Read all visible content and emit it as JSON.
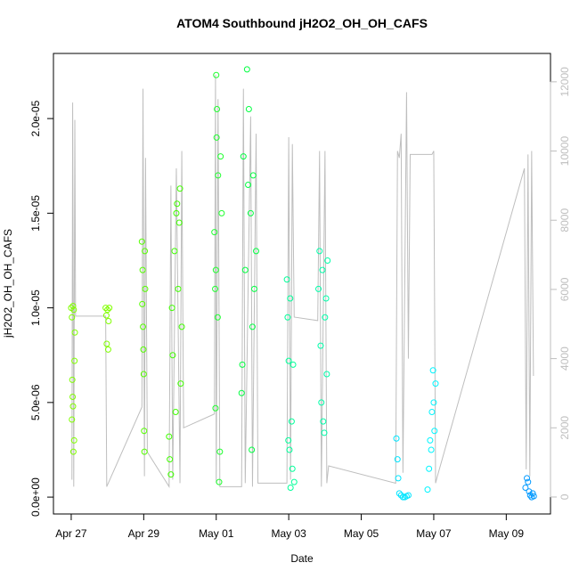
{
  "chart_data": {
    "type": "scatter",
    "title": "ATOM4 Southbound jH2O2_OH_OH_CAFS",
    "xlabel": "Date",
    "ylabel": "jH2O2_OH_OH_CAFS",
    "xlim": [
      -0.49,
      13.22
    ],
    "ylim": [
      -8.9e-07,
      2.344e-05
    ],
    "y2lim": [
      -490,
      12820
    ],
    "xticks": [
      {
        "value": 0,
        "label": "Apr 27"
      },
      {
        "value": 2,
        "label": "Apr 29"
      },
      {
        "value": 4,
        "label": "May 01"
      },
      {
        "value": 6,
        "label": "May 03"
      },
      {
        "value": 8,
        "label": "May 05"
      },
      {
        "value": 10,
        "label": "May 07"
      },
      {
        "value": 12,
        "label": "May 09"
      }
    ],
    "yticks": [
      {
        "value": 0,
        "label": "0.0e+00"
      },
      {
        "value": 5e-06,
        "label": "5.0e-06"
      },
      {
        "value": 1e-05,
        "label": "1.0e-05"
      },
      {
        "value": 1.5e-05,
        "label": "1.5e-05"
      },
      {
        "value": 2e-05,
        "label": "2.0e-05"
      }
    ],
    "y2ticks": [
      0,
      2000,
      4000,
      6000,
      8000,
      10000,
      12000
    ],
    "y2color": "#bebebe",
    "series": [
      {
        "color": "#80ff00",
        "x": [
          0.0,
          0.02,
          0.03,
          0.05,
          0.06,
          0.08,
          0.1,
          0.04,
          0.07,
          0.02,
          0.09,
          0.05
        ],
        "values": [
          1e-05,
          9.5e-06,
          6.2e-06,
          4.8e-06,
          2.4e-06,
          3e-06,
          8.7e-06,
          5.3e-06,
          9.9e-06,
          4.1e-06,
          7.2e-06,
          1.01e-05
        ]
      },
      {
        "color": "#80ff00",
        "x": [
          0.95,
          0.97,
          0.98,
          1.0,
          1.02,
          1.03,
          1.05
        ],
        "values": [
          1e-05,
          9.6e-06,
          8.1e-06,
          9.9e-06,
          7.8e-06,
          9.3e-06,
          1e-05
        ]
      },
      {
        "color": "#55ff00",
        "x": [
          1.95,
          1.97,
          1.98,
          2.0,
          2.01,
          2.02,
          2.04,
          1.99,
          2.03,
          1.96
        ],
        "values": [
          1.35e-05,
          1.2e-05,
          9e-06,
          6.5e-06,
          3.5e-06,
          2.4e-06,
          1.1e-05,
          7.8e-06,
          1.3e-05,
          1.02e-05
        ]
      },
      {
        "color": "#40ff00",
        "x": [
          2.7,
          2.75,
          2.8,
          2.85,
          2.9,
          2.95,
          3.0,
          3.05,
          2.72,
          2.88,
          2.98,
          3.02,
          2.78,
          2.92
        ],
        "values": [
          3.2e-06,
          1.2e-06,
          7.5e-06,
          1.3e-05,
          1.5e-05,
          1.1e-05,
          1.63e-05,
          9e-06,
          2e-06,
          4.5e-06,
          1.45e-05,
          6e-06,
          1e-05,
          1.55e-05
        ]
      },
      {
        "color": "#20ff30",
        "x": [
          3.95,
          3.97,
          3.98,
          4.0,
          4.02,
          4.05,
          4.08,
          4.1,
          4.12,
          4.15,
          3.99,
          4.04,
          4.01
        ],
        "values": [
          1.4e-05,
          1.1e-05,
          4.7e-06,
          2.23e-05,
          2.05e-05,
          1.7e-05,
          8e-07,
          2.4e-06,
          1.8e-05,
          1.5e-05,
          1.2e-05,
          9.5e-06,
          1.9e-05
        ]
      },
      {
        "color": "#00ff40",
        "x": [
          4.7,
          4.75,
          4.8,
          4.85,
          4.9,
          4.95,
          5.0,
          5.05,
          5.1,
          4.72,
          4.88,
          5.02,
          4.98
        ],
        "values": [
          5.5e-06,
          1.8e-05,
          1.2e-05,
          2.26e-05,
          2.05e-05,
          1.5e-05,
          9e-06,
          1.1e-05,
          1.3e-05,
          7e-06,
          1.65e-05,
          1.7e-05,
          2.5e-06
        ]
      },
      {
        "color": "#00ff99",
        "x": [
          5.95,
          5.97,
          6.0,
          6.02,
          6.05,
          6.08,
          6.1,
          6.12,
          6.15,
          6.04,
          5.99
        ],
        "values": [
          1.15e-05,
          9.5e-06,
          7.2e-06,
          2.5e-06,
          5e-07,
          4e-06,
          1.5e-06,
          7e-06,
          8e-07,
          1.05e-05,
          3e-06
        ]
      },
      {
        "color": "#00ffaa",
        "x": [
          6.82,
          6.85,
          6.88,
          6.9,
          6.93,
          6.95,
          6.98,
          7.0,
          7.03,
          7.05,
          7.07
        ],
        "values": [
          1.1e-05,
          1.3e-05,
          8e-06,
          5e-06,
          1.2e-05,
          4e-06,
          3.4e-06,
          9.5e-06,
          1.05e-05,
          6.5e-06,
          1.25e-05
        ]
      },
      {
        "color": "#00e5ff",
        "x": [
          8.97,
          9.0,
          9.02,
          9.05,
          9.1,
          9.15,
          9.2,
          9.25,
          9.3
        ],
        "values": [
          3.1e-06,
          2e-06,
          1e-06,
          2e-07,
          1e-07,
          0,
          0,
          5e-08,
          1e-07
        ]
      },
      {
        "color": "#00f5ff",
        "x": [
          9.83,
          9.87,
          9.9,
          9.93,
          9.95,
          9.98,
          10.0,
          10.02,
          10.05
        ],
        "values": [
          4e-07,
          1.5e-06,
          3e-06,
          2.5e-06,
          4.5e-06,
          6.7e-06,
          5e-06,
          3.5e-06,
          6e-06
        ]
      },
      {
        "color": "#0099ff",
        "x": [
          12.53,
          12.57,
          12.6,
          12.63,
          12.66,
          12.7,
          12.73,
          12.76
        ],
        "values": [
          5e-07,
          1e-06,
          8e-07,
          3e-07,
          1e-07,
          0,
          2e-07,
          5e-08
        ]
      },
      {
        "type": "line",
        "axis": "y2",
        "color": "#bebebe",
        "x": [
          0.02,
          0.04,
          0.07,
          0.1,
          0.12,
          0.95,
          0.98,
          1.95,
          1.98,
          2.02,
          2.05,
          2.1,
          2.7,
          2.75,
          2.8,
          2.9,
          3.0,
          3.05,
          3.1,
          3.95,
          3.98,
          4.0,
          4.05,
          4.1,
          4.7,
          4.75,
          4.8,
          4.95,
          5.0,
          5.1,
          5.15,
          5.95,
          6.0,
          6.05,
          6.1,
          6.15,
          6.8,
          6.85,
          6.9,
          7.0,
          7.05,
          7.1,
          8.95,
          9.0,
          9.05,
          9.1,
          9.15,
          9.25,
          9.3,
          9.35,
          9.95,
          10.0,
          10.05,
          10.1,
          12.5,
          12.55,
          12.6,
          12.65,
          12.7,
          12.75
        ],
        "values": [
          500,
          11400,
          300,
          10900,
          5230,
          5230,
          300,
          2600,
          11800,
          600,
          9800,
          1300,
          300,
          9000,
          500,
          9500,
          400,
          10000,
          2000,
          2400,
          12200,
          400,
          11500,
          300,
          300,
          11800,
          400,
          11000,
          300,
          10500,
          400,
          400,
          10400,
          500,
          10200,
          5200,
          5100,
          10000,
          300,
          10000,
          400,
          900,
          400,
          10000,
          9800,
          10500,
          700,
          11700,
          4000,
          9900,
          9900,
          10000,
          400,
          600,
          9500,
          800,
          9900,
          600,
          10000,
          3500
        ]
      }
    ]
  }
}
